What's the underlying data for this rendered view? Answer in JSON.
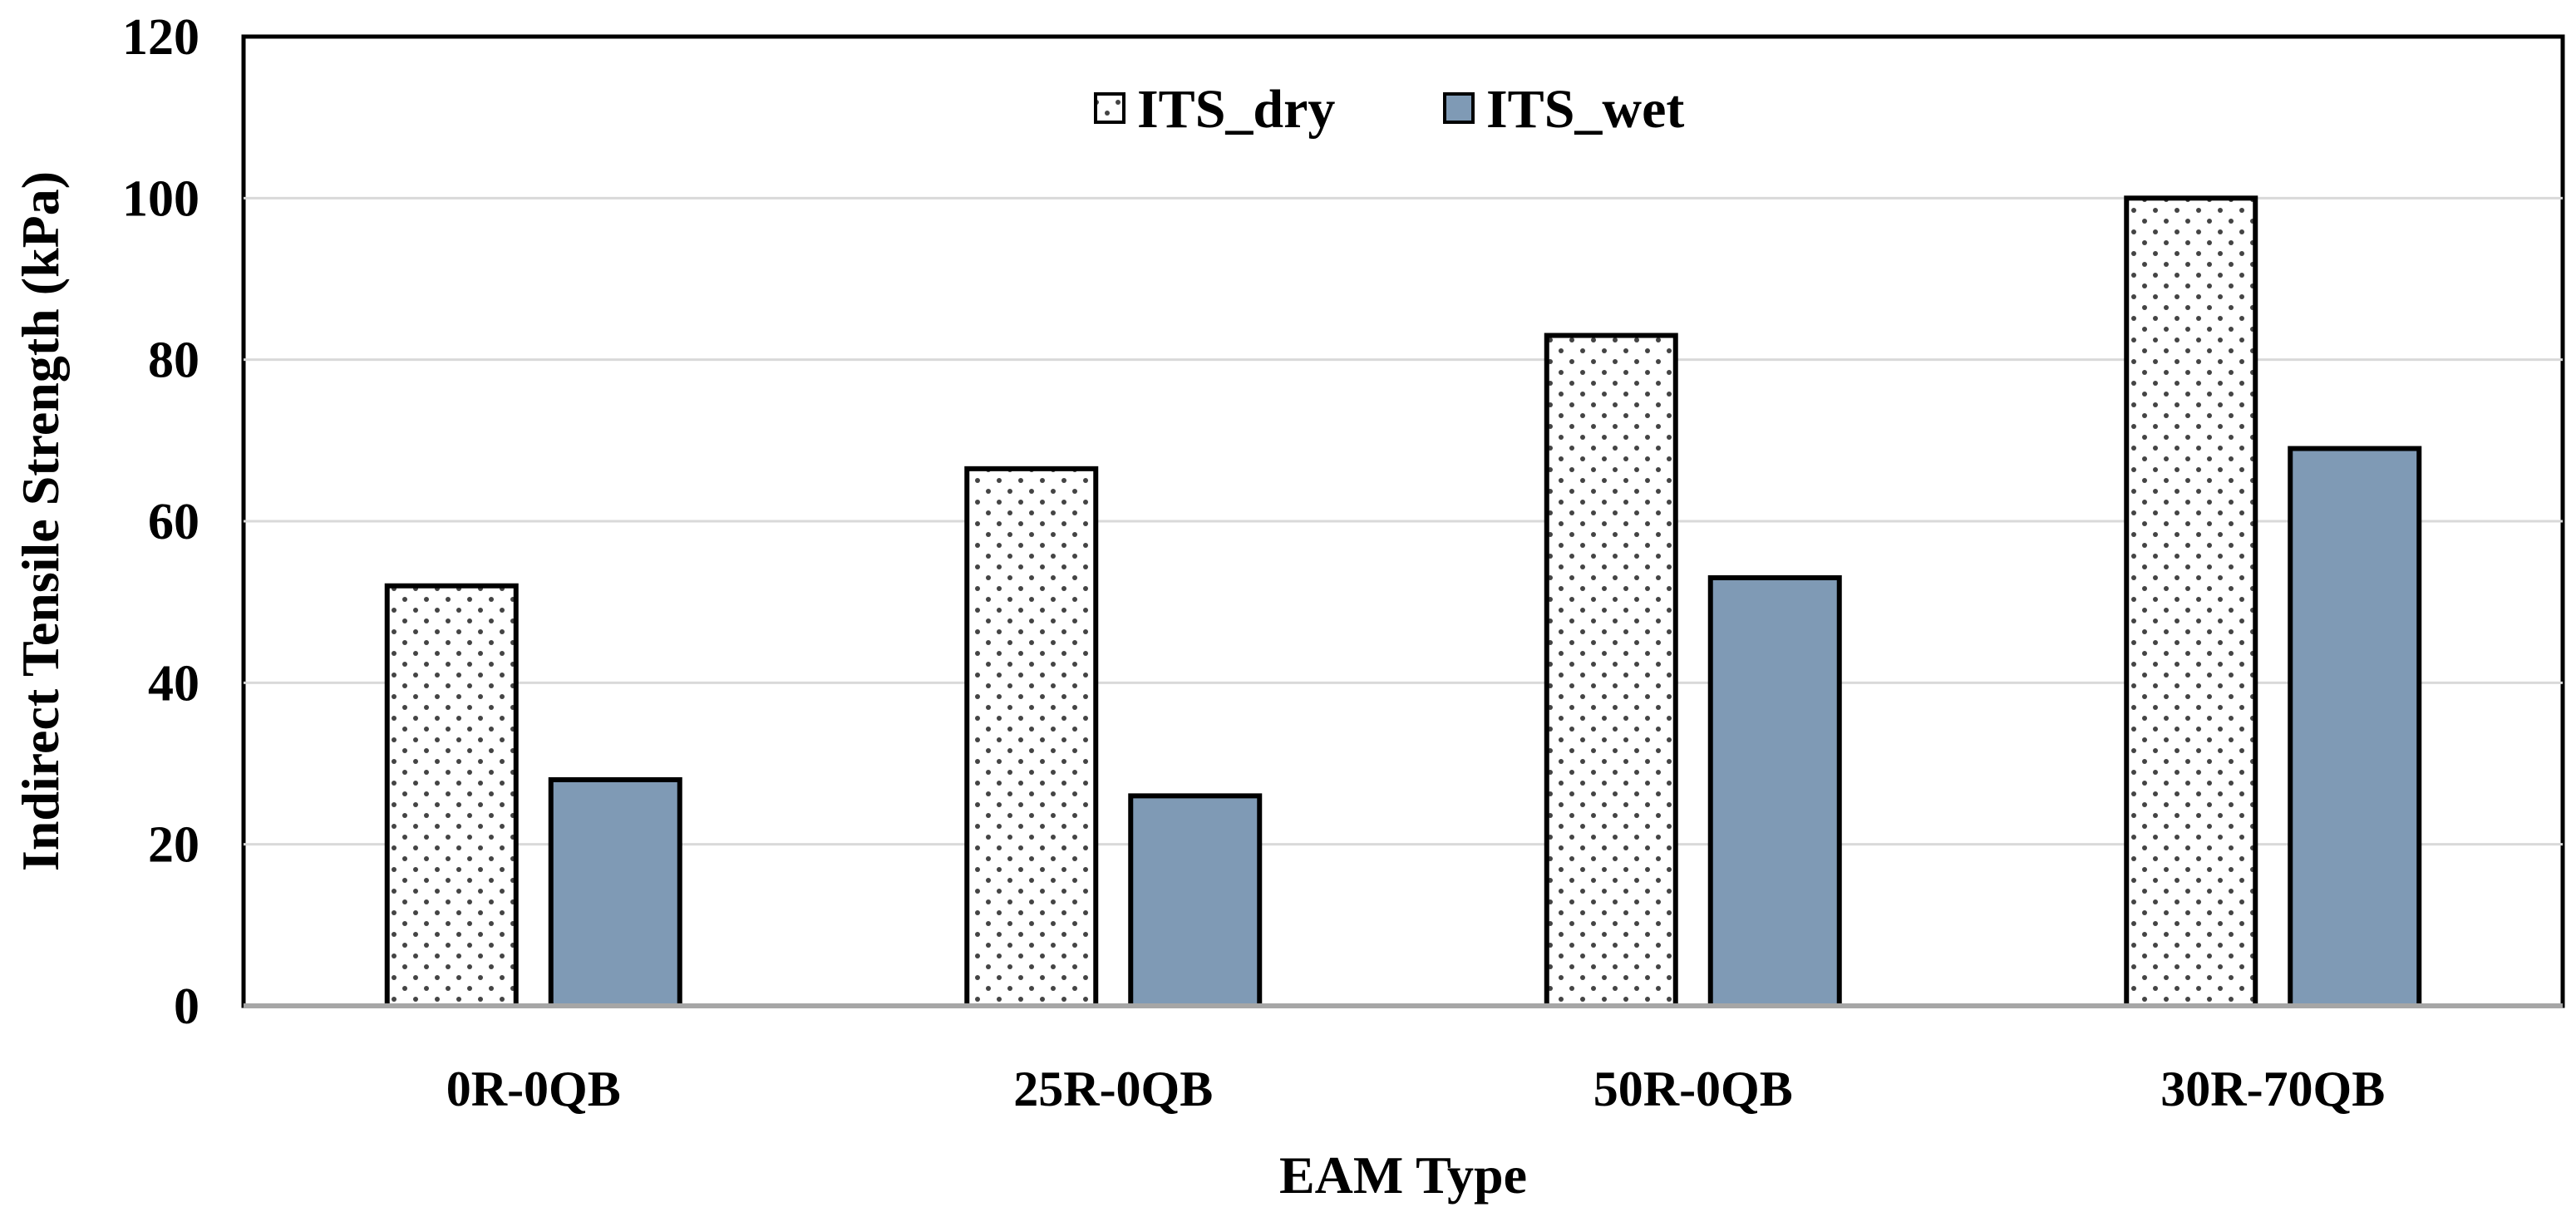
{
  "chart_data": {
    "type": "bar",
    "title": "",
    "xlabel": "EAM Type",
    "ylabel": "Indirect Tensile Strength (kPa)",
    "ylim": [
      0,
      120
    ],
    "yticks": [
      0,
      20,
      40,
      60,
      80,
      100,
      120
    ],
    "grid": true,
    "legend_position": "top-center",
    "categories": [
      "0R-0QB",
      "25R-0QB",
      "50R-0QB",
      "30R-70QB"
    ],
    "series": [
      {
        "name": "ITS_dry",
        "values": [
          52,
          66.5,
          83,
          100
        ],
        "pattern": "dotted",
        "color": "#ffffff"
      },
      {
        "name": "ITS_wet",
        "values": [
          28,
          26,
          53,
          69
        ],
        "pattern": "solid",
        "color": "#7f9ab5"
      }
    ]
  }
}
